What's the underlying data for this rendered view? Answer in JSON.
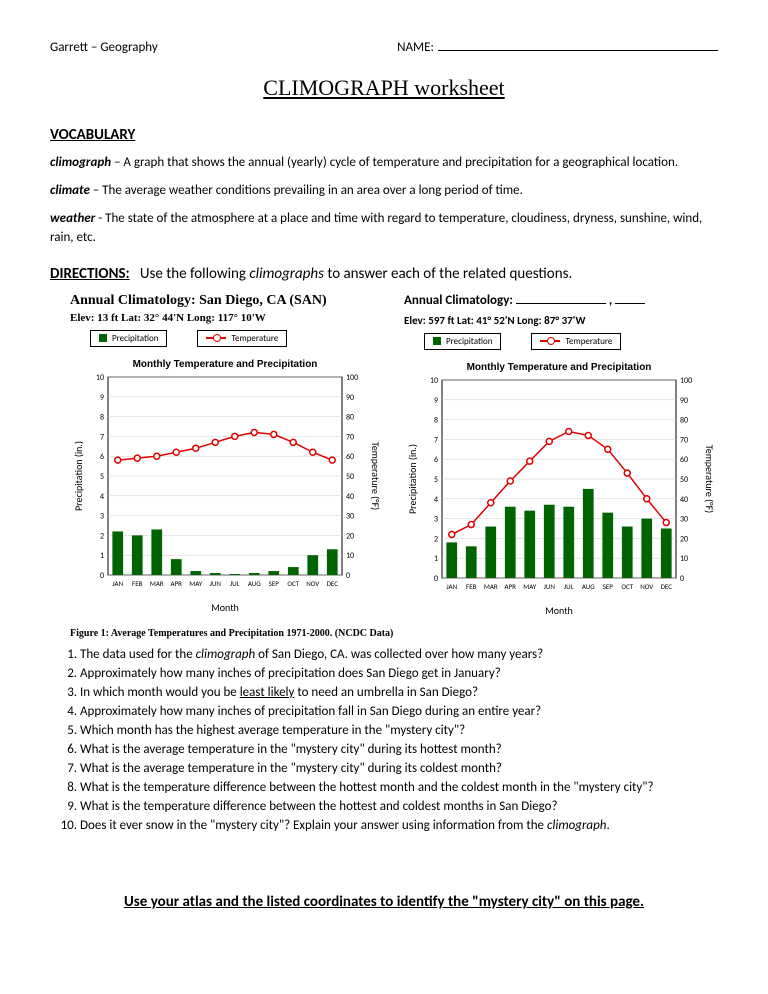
{
  "header": {
    "left": "Garrett – Geography",
    "name_label": "NAME:"
  },
  "title": "CLIMOGRAPH worksheet",
  "vocab": {
    "heading": "VOCABULARY",
    "entries": [
      {
        "term": "climograph",
        "def": " – A graph that shows the annual (yearly) cycle of temperature and precipitation for a geographical location."
      },
      {
        "term": "climate",
        "def": " – The average weather conditions prevailing in an area over a long period of time."
      },
      {
        "term": "weather",
        "def": " - The state of the atmosphere at a place and time with regard to temperature, cloudiness, dryness, sunshine, wind, rain, etc."
      }
    ]
  },
  "directions": {
    "label": "DIRECTIONS:",
    "text_before": "Use the following ",
    "text_italic": "climographs",
    "text_after": " to answer each of the related questions."
  },
  "chart1": {
    "title": "Annual Climatology: San Diego, CA (SAN)",
    "sub": "Elev: 13 ft   Lat: 32° 44'N   Long: 117° 10'W",
    "legend_precip": "Precipitation",
    "legend_temp": "Temperature",
    "plot_title": "Monthly Temperature and Precipitation",
    "xlabel": "Month",
    "ylabel_left": "Precipitation (in.)",
    "ylabel_right": "Temperature (°F)",
    "months": [
      "JAN",
      "FEB",
      "MAR",
      "APR",
      "MAY",
      "JUN",
      "JUL",
      "AUG",
      "SEP",
      "OCT",
      "NOV",
      "DEC"
    ],
    "precip": [
      2.2,
      2.0,
      2.3,
      0.8,
      0.2,
      0.1,
      0.05,
      0.1,
      0.2,
      0.4,
      1.0,
      1.3
    ],
    "temp": [
      58,
      59,
      60,
      62,
      64,
      67,
      70,
      72,
      71,
      67,
      62,
      58
    ],
    "y_left_max": 10,
    "y_left_step": 1,
    "y_right_max": 100,
    "y_right_step": 10,
    "colors": {
      "bar": "#006400",
      "line": "#e00000",
      "grid": "#cccccc",
      "axis": "#000000",
      "bg": "#ffffff"
    },
    "caption": "Figure 1: Average Temperatures and Precipitation 1971-2000. (NCDC Data)"
  },
  "chart2": {
    "title_prefix": "Annual Climatology: ",
    "sub": "Elev:  597 ft    Lat:  41° 52'N    Long:  87° 37'W",
    "legend_precip": "Precipitation",
    "legend_temp": "Temperature",
    "plot_title": "Monthly Temperature and Precipitation",
    "xlabel": "Month",
    "ylabel_left": "Precipitation (in.)",
    "ylabel_right": "Temperature (°F)",
    "months": [
      "JAN",
      "FEB",
      "MAR",
      "APR",
      "MAY",
      "JUN",
      "JUL",
      "AUG",
      "SEP",
      "OCT",
      "NOV",
      "DEC"
    ],
    "precip": [
      1.8,
      1.6,
      2.6,
      3.6,
      3.4,
      3.7,
      3.6,
      4.5,
      3.3,
      2.6,
      3.0,
      2.5
    ],
    "temp": [
      22,
      27,
      38,
      49,
      59,
      69,
      74,
      72,
      65,
      53,
      40,
      28
    ],
    "y_left_max": 10,
    "y_left_step": 1,
    "y_right_max": 100,
    "y_right_step": 10,
    "colors": {
      "bar": "#006400",
      "line": "#e00000",
      "grid": "#cccccc",
      "axis": "#000000",
      "bg": "#ffffff"
    }
  },
  "questions": [
    "The data used for the <i>climograph</i> of San Diego, CA. was collected over how many years?",
    "Approximately how many inches of precipitation does San Diego get in January?",
    "In which month would you be <u>least likely</u> to need an umbrella in San Diego?",
    "Approximately how many inches of precipitation fall in San Diego during an entire year?",
    "Which month has the highest average temperature in the \"mystery city\"?",
    "What is the average temperature in the \"mystery city\" during its hottest month?",
    "What is the average temperature in the \"mystery city\" during its coldest month?",
    "What is the temperature difference between the hottest month and the coldest month in the \"mystery city\"?",
    "What is the temperature difference between the hottest and coldest months in San Diego?",
    "Does it ever snow in the \"mystery city\"?  Explain your answer using information from the <i>climograph</i>."
  ],
  "footer": "Use your atlas and the listed coordinates to identify the \"mystery city\" on this page."
}
